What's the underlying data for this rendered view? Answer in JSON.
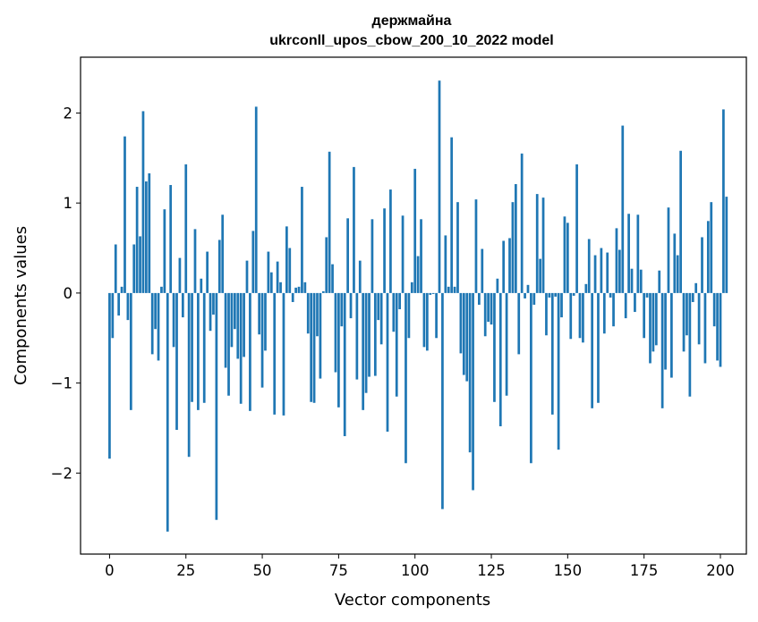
{
  "chart_data": {
    "type": "bar",
    "title": "держмайна",
    "subtitle": "ukrconll_upos_cbow_200_10_2022 model",
    "xlabel": "Vector components",
    "ylabel": "Components values",
    "xlim": [
      -9.5,
      208.5
    ],
    "ylim": [
      -2.9,
      2.62
    ],
    "x_ticks": [
      0,
      25,
      50,
      75,
      100,
      125,
      150,
      175,
      200
    ],
    "y_ticks": [
      -2,
      -1,
      0,
      1,
      2
    ],
    "y_tick_labels": [
      "−2",
      "−1",
      "0",
      "1",
      "2"
    ],
    "grid": false,
    "bar_color": "#1f77b4",
    "values": [
      -1.84,
      -0.5,
      0.54,
      -0.25,
      0.07,
      1.74,
      -0.3,
      -1.3,
      0.54,
      1.18,
      0.63,
      2.02,
      1.24,
      1.33,
      -0.68,
      -0.4,
      -0.75,
      0.07,
      0.93,
      -2.65,
      1.2,
      -0.6,
      -1.52,
      0.39,
      -0.27,
      1.43,
      -1.82,
      -1.21,
      0.71,
      -1.3,
      0.16,
      -1.22,
      0.46,
      -0.42,
      -0.24,
      -2.52,
      0.59,
      0.87,
      -0.83,
      -1.14,
      -0.6,
      -0.4,
      -0.73,
      -1.23,
      -0.71,
      0.36,
      -1.31,
      0.69,
      2.07,
      -0.46,
      -1.05,
      -0.64,
      0.46,
      0.23,
      -1.35,
      0.35,
      0.12,
      -1.36,
      0.74,
      0.5,
      -0.1,
      0.06,
      0.07,
      1.18,
      0.12,
      -0.45,
      -1.21,
      -1.22,
      -0.48,
      -0.95,
      0.02,
      0.62,
      1.57,
      0.32,
      -0.88,
      -1.27,
      -0.37,
      -1.59,
      0.83,
      -0.28,
      1.4,
      -0.96,
      0.36,
      -1.3,
      -1.11,
      -0.93,
      0.82,
      -0.92,
      -0.3,
      -0.57,
      0.94,
      -1.54,
      1.15,
      -0.43,
      -1.15,
      -0.18,
      0.86,
      -1.89,
      -0.5,
      0.12,
      1.38,
      0.41,
      0.82,
      -0.6,
      -0.64,
      -0.02,
      -0.01,
      -0.5,
      2.36,
      -2.4,
      0.64,
      0.07,
      1.73,
      0.07,
      1.01,
      -0.67,
      -0.91,
      -0.98,
      -1.77,
      -2.19,
      1.04,
      -0.13,
      0.49,
      -0.48,
      -0.32,
      -0.35,
      -1.21,
      0.16,
      -1.48,
      0.58,
      -1.14,
      0.61,
      1.01,
      1.21,
      -0.68,
      1.55,
      -0.06,
      0.09,
      -1.89,
      -0.13,
      1.1,
      0.38,
      1.06,
      -0.47,
      -0.05,
      -1.35,
      -0.04,
      -1.74,
      -0.27,
      0.85,
      0.78,
      -0.51,
      -0.03,
      1.43,
      -0.5,
      -0.55,
      0.1,
      0.6,
      -1.28,
      0.42,
      -1.22,
      0.5,
      -0.45,
      0.45,
      -0.05,
      -0.37,
      0.72,
      0.48,
      1.86,
      -0.28,
      0.88,
      0.27,
      -0.21,
      0.87,
      0.26,
      -0.5,
      -0.05,
      -0.78,
      -0.65,
      -0.58,
      0.25,
      -1.28,
      -0.85,
      0.95,
      -0.94,
      0.66,
      0.42,
      1.58,
      -0.65,
      -0.47,
      -1.15,
      -0.1,
      0.11,
      -0.57,
      0.62,
      -0.78,
      0.8,
      1.01,
      -0.37,
      -0.75,
      -0.82,
      2.04,
      1.07
    ]
  }
}
